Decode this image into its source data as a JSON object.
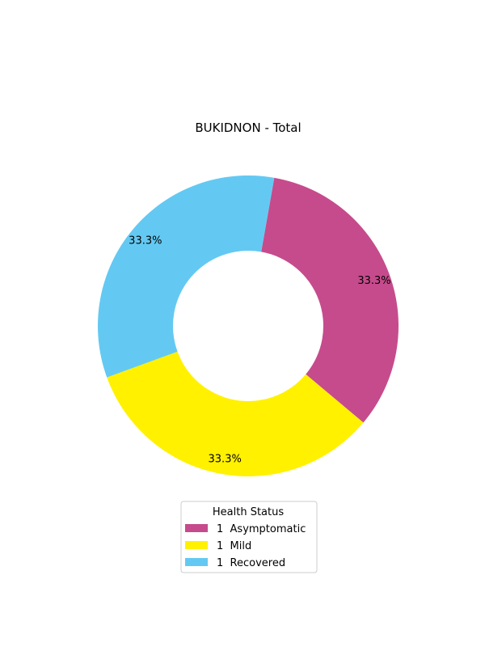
{
  "chart_data": {
    "type": "pie",
    "variant": "donut",
    "title": "BUKIDNON - Total",
    "slices": [
      {
        "label": "Asymptomatic",
        "value": 1,
        "percent_label": "33.3%",
        "legend_label": "1  Asymptomatic",
        "color": "#c64b8c"
      },
      {
        "label": "Mild",
        "value": 1,
        "percent_label": "33.3%",
        "legend_label": "1  Mild",
        "color": "#fff100"
      },
      {
        "label": "Recovered",
        "value": 1,
        "percent_label": "33.3%",
        "legend_label": "1  Recovered",
        "color": "#63c9f2"
      }
    ],
    "legend": {
      "title": "Health Status",
      "placement": "bottom-center"
    }
  }
}
